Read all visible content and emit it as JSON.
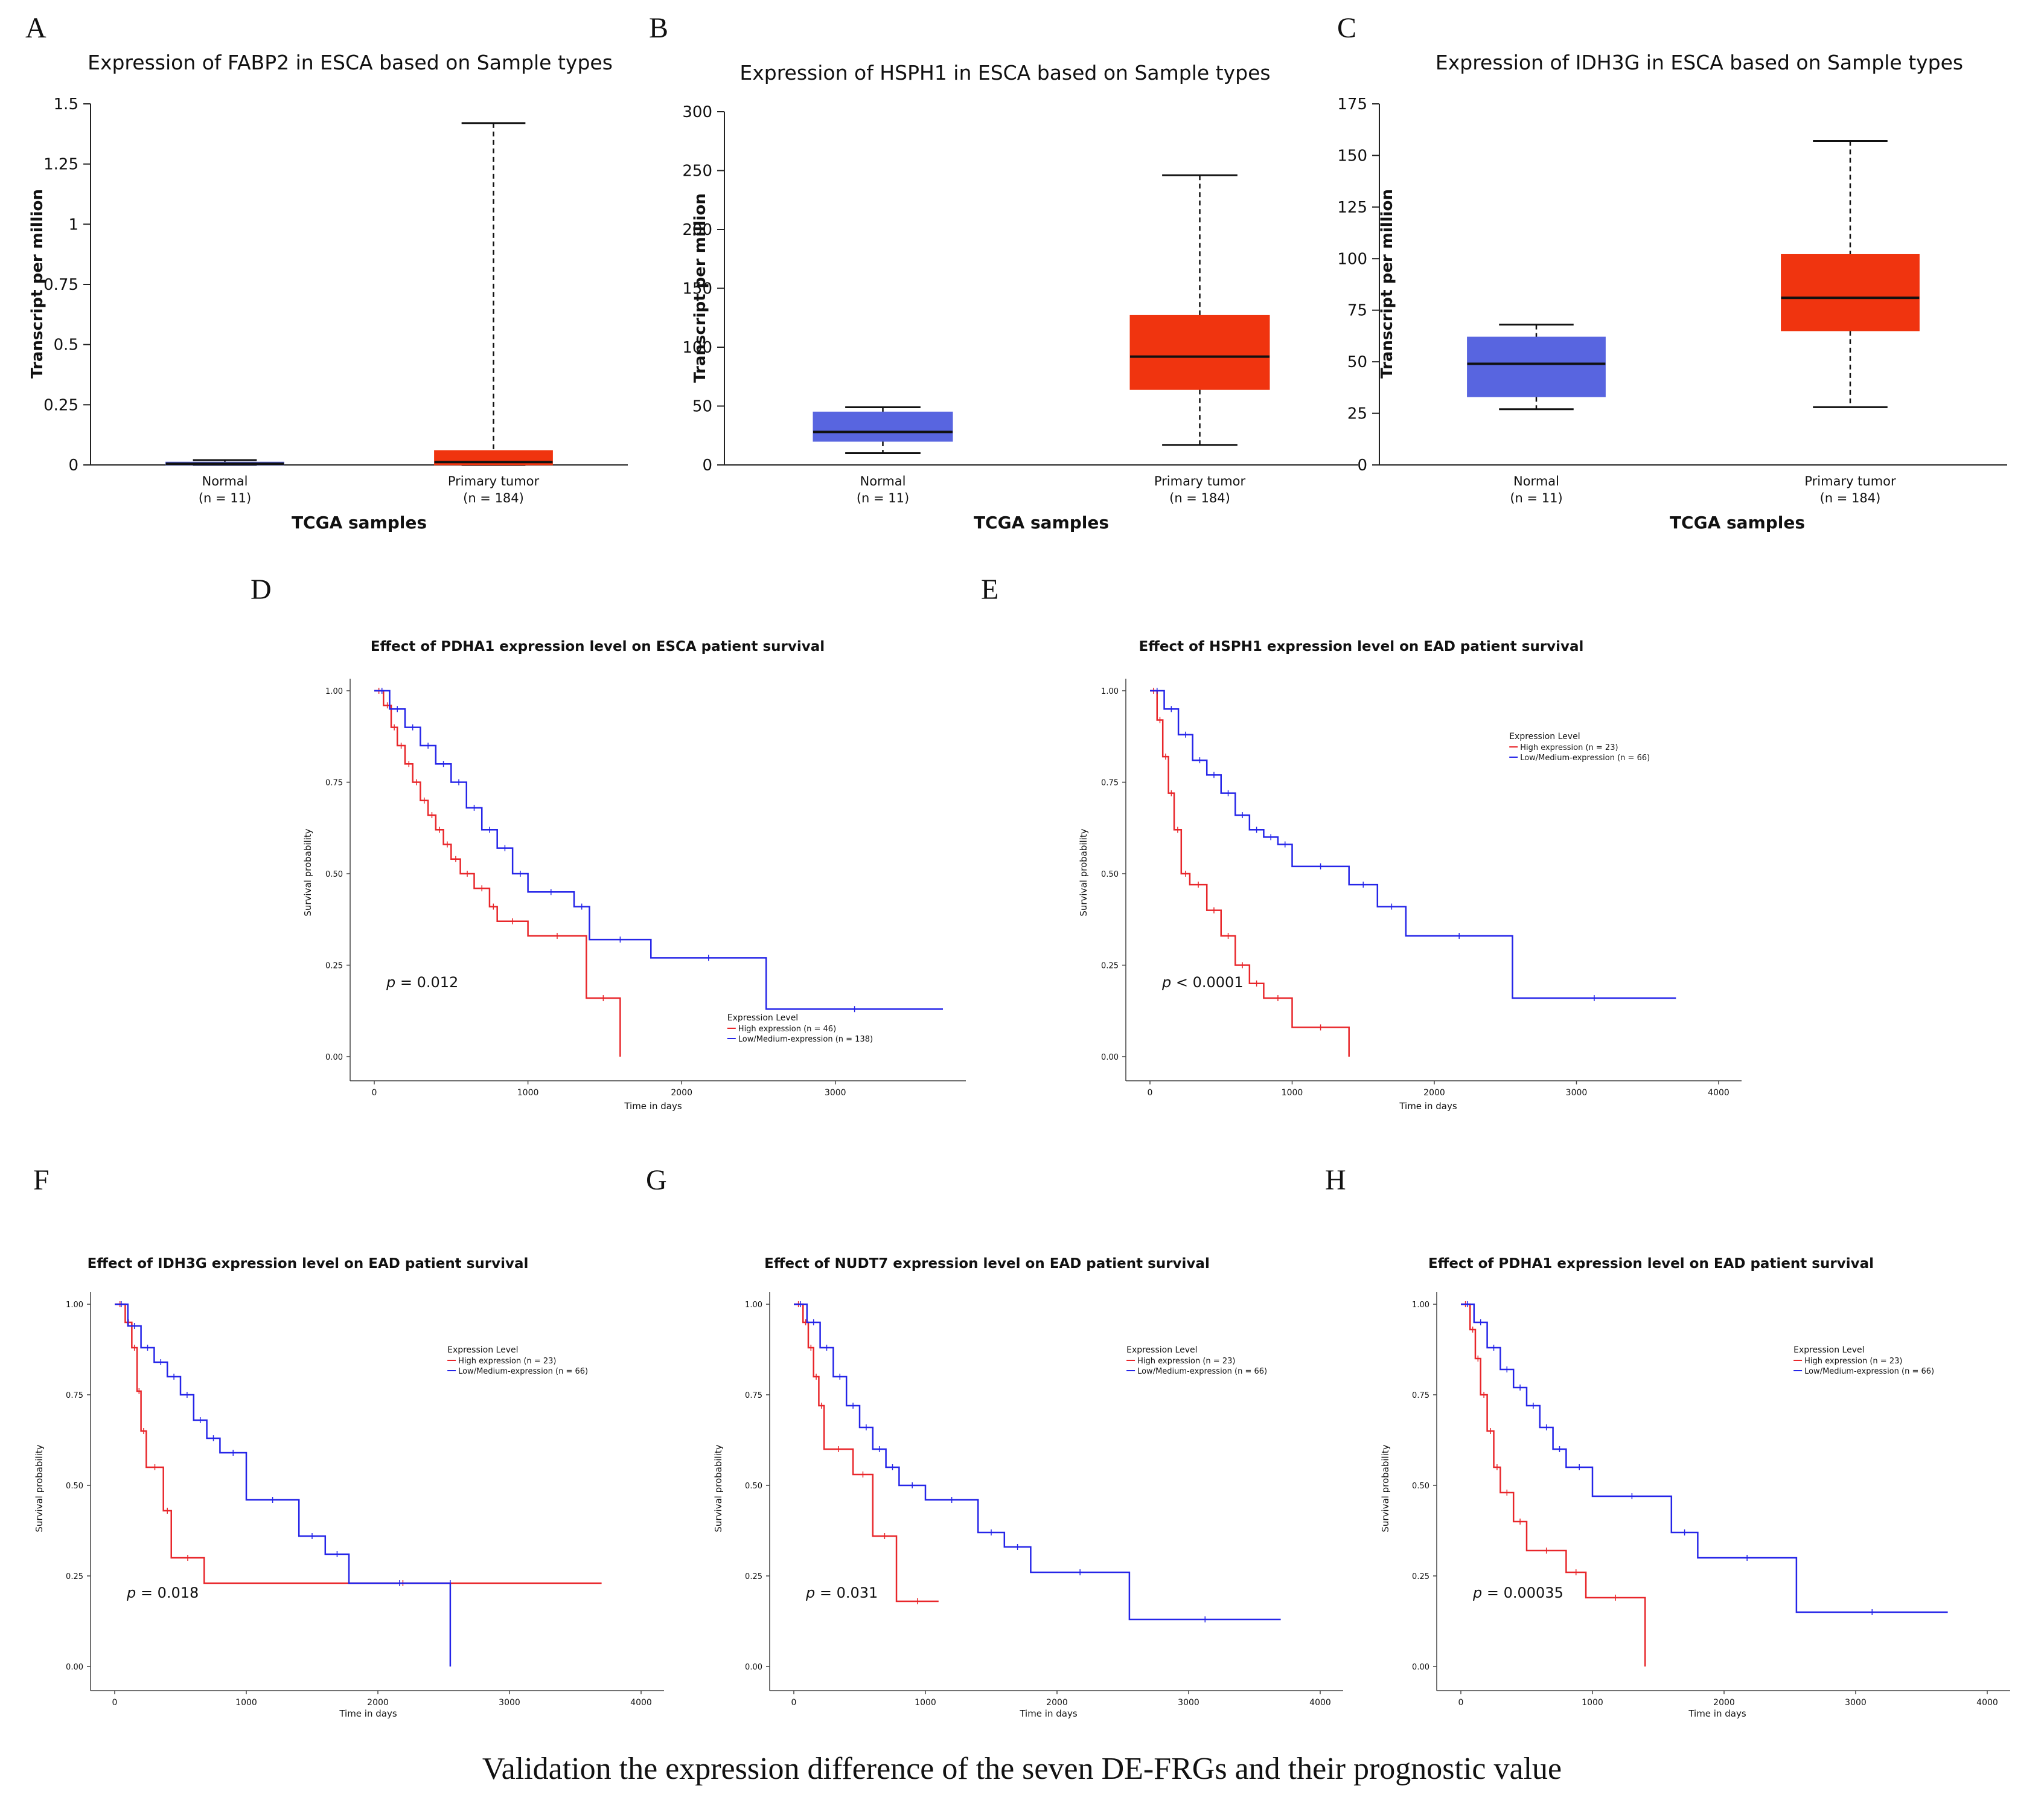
{
  "figure": {
    "caption": "Validation the expression difference of the seven DE-FRGs and their prognostic value"
  },
  "colors": {
    "normal_box": "#5865E0",
    "tumor_box": "#F0340F",
    "high_line": "#E8262A",
    "low_line": "#2525E8"
  },
  "chart_data": [
    {
      "panel": "A",
      "type": "box",
      "title": "Expression of FABP2 in ESCA based on Sample types",
      "ylabel": "Transcript per million",
      "xlabel": "TCGA samples",
      "ylim": [
        0,
        1.5
      ],
      "yticks": [
        0,
        0.25,
        0.5,
        0.75,
        1,
        1.25,
        1.5
      ],
      "ytick_labels": [
        "0",
        "0.25",
        "0.5",
        "0.75",
        "1",
        "1.25",
        "1.5"
      ],
      "groups": [
        {
          "name": "Normal",
          "n_label": "(n = 11)",
          "whisker_low": 0.0,
          "q1": 0.0,
          "median": 0.005,
          "q3": 0.012,
          "whisker_high": 0.02
        },
        {
          "name": "Primary tumor",
          "n_label": "(n = 184)",
          "whisker_low": 0.0,
          "q1": 0.0,
          "median": 0.012,
          "q3": 0.06,
          "whisker_high": 1.42
        }
      ]
    },
    {
      "panel": "B",
      "type": "box",
      "title": "Expression of HSPH1 in ESCA based on Sample types",
      "ylabel": "Transcript per million",
      "xlabel": "TCGA samples",
      "ylim": [
        0,
        300
      ],
      "yticks": [
        0,
        50,
        100,
        150,
        200,
        250,
        300
      ],
      "ytick_labels": [
        "0",
        "50",
        "100",
        "150",
        "200",
        "250",
        "300"
      ],
      "groups": [
        {
          "name": "Normal",
          "n_label": "(n = 11)",
          "whisker_low": 10,
          "q1": 20,
          "median": 28,
          "q3": 45,
          "whisker_high": 49
        },
        {
          "name": "Primary tumor",
          "n_label": "(n = 184)",
          "whisker_low": 17,
          "q1": 64,
          "median": 92,
          "q3": 127,
          "whisker_high": 246
        }
      ]
    },
    {
      "panel": "C",
      "type": "box",
      "title": "Expression of IDH3G in ESCA based on Sample types",
      "ylabel": "Transcript per million",
      "xlabel": "TCGA samples",
      "ylim": [
        0,
        175
      ],
      "yticks": [
        0,
        25,
        50,
        75,
        100,
        125,
        150,
        175
      ],
      "ytick_labels": [
        "0",
        "25",
        "50",
        "75",
        "100",
        "125",
        "150",
        "175"
      ],
      "groups": [
        {
          "name": "Normal",
          "n_label": "(n = 11)",
          "whisker_low": 27,
          "q1": 33,
          "median": 49,
          "q3": 62,
          "whisker_high": 68
        },
        {
          "name": "Primary tumor",
          "n_label": "(n = 184)",
          "whisker_low": 28,
          "q1": 65,
          "median": 81,
          "q3": 102,
          "whisker_high": 157
        }
      ]
    },
    {
      "panel": "D",
      "type": "line",
      "title": "Effect of PDHA1 expression level on ESCA patient survival",
      "ylabel": "Survival probability",
      "xlabel": "Time in days",
      "xlim": [
        0,
        3700
      ],
      "xticks": [
        0,
        1000,
        2000,
        3000
      ],
      "ylim": [
        0,
        1
      ],
      "yticks": [
        0,
        0.25,
        0.5,
        0.75,
        1
      ],
      "ytick_labels": [
        "0.00",
        "0.25",
        "0.50",
        "0.75",
        "1.00"
      ],
      "pvalue": "= 0.012",
      "legend_title": "Expression Level",
      "legend_items": [
        "High expression (n = 46)",
        "Low/Medium-expression (n = 138)"
      ],
      "legend_position": "bottom-right",
      "series": [
        {
          "name": "High expression",
          "x": [
            0,
            60,
            110,
            150,
            200,
            250,
            300,
            350,
            400,
            450,
            500,
            560,
            650,
            750,
            800,
            1000,
            1380,
            1600
          ],
          "y": [
            1.0,
            0.96,
            0.9,
            0.85,
            0.8,
            0.75,
            0.7,
            0.66,
            0.62,
            0.58,
            0.54,
            0.5,
            0.46,
            0.41,
            0.37,
            0.33,
            0.16,
            0.0
          ]
        },
        {
          "name": "Low/Medium-expression",
          "x": [
            0,
            100,
            200,
            300,
            400,
            500,
            600,
            700,
            800,
            900,
            1000,
            1300,
            1400,
            1800,
            2550,
            3700
          ],
          "y": [
            1.0,
            0.95,
            0.9,
            0.85,
            0.8,
            0.75,
            0.68,
            0.62,
            0.57,
            0.5,
            0.45,
            0.41,
            0.32,
            0.27,
            0.13,
            0.13
          ]
        }
      ]
    },
    {
      "panel": "E",
      "type": "line",
      "title": "Effect of HSPH1 expression level on EAD patient survival",
      "ylabel": "Survival probability",
      "xlabel": "Time in days",
      "xlim": [
        0,
        4000
      ],
      "xticks": [
        0,
        1000,
        2000,
        3000,
        4000
      ],
      "ylim": [
        0,
        1
      ],
      "yticks": [
        0,
        0.25,
        0.5,
        0.75,
        1
      ],
      "ytick_labels": [
        "0.00",
        "0.25",
        "0.50",
        "0.75",
        "1.00"
      ],
      "pvalue": "< 0.0001",
      "legend_title": "Expression Level",
      "legend_items": [
        "High expression (n = 23)",
        "Low/Medium-expression (n = 66)"
      ],
      "legend_position": "top-right",
      "series": [
        {
          "name": "High expression",
          "x": [
            0,
            50,
            90,
            130,
            170,
            220,
            280,
            400,
            500,
            600,
            700,
            800,
            1000,
            1400
          ],
          "y": [
            1.0,
            0.92,
            0.82,
            0.72,
            0.62,
            0.5,
            0.47,
            0.4,
            0.33,
            0.25,
            0.2,
            0.16,
            0.08,
            0.0
          ]
        },
        {
          "name": "Low/Medium-expression",
          "x": [
            0,
            100,
            200,
            300,
            400,
            500,
            600,
            700,
            800,
            900,
            1000,
            1400,
            1600,
            1800,
            2550,
            3700
          ],
          "y": [
            1.0,
            0.95,
            0.88,
            0.81,
            0.77,
            0.72,
            0.66,
            0.62,
            0.6,
            0.58,
            0.52,
            0.47,
            0.41,
            0.33,
            0.16,
            0.16
          ]
        }
      ]
    },
    {
      "panel": "F",
      "type": "line",
      "title": "Effect of IDH3G expression level on EAD patient survival",
      "ylabel": "Survival probability",
      "xlabel": "Time in days",
      "xlim": [
        0,
        4000
      ],
      "xticks": [
        0,
        1000,
        2000,
        3000,
        4000
      ],
      "ylim": [
        0,
        1
      ],
      "yticks": [
        0,
        0.25,
        0.5,
        0.75,
        1
      ],
      "ytick_labels": [
        "0.00",
        "0.25",
        "0.50",
        "0.75",
        "1.00"
      ],
      "pvalue": "= 0.018",
      "legend_title": "Expression Level",
      "legend_items": [
        "High expression (n = 23)",
        "Low/Medium-expression (n = 66)"
      ],
      "legend_position": "top-right",
      "series": [
        {
          "name": "High expression",
          "x": [
            0,
            80,
            130,
            170,
            200,
            240,
            370,
            430,
            680,
            3700
          ],
          "y": [
            1.0,
            0.95,
            0.88,
            0.76,
            0.65,
            0.55,
            0.43,
            0.3,
            0.23,
            0.23
          ]
        },
        {
          "name": "Low/Medium-expression",
          "x": [
            0,
            100,
            200,
            300,
            400,
            500,
            600,
            700,
            800,
            1000,
            1400,
            1600,
            1780,
            2550,
            2550
          ],
          "y": [
            1.0,
            0.94,
            0.88,
            0.84,
            0.8,
            0.75,
            0.68,
            0.63,
            0.59,
            0.46,
            0.36,
            0.31,
            0.23,
            0.23,
            0.0
          ]
        }
      ]
    },
    {
      "panel": "G",
      "type": "line",
      "title": "Effect of NUDT7 expression level on EAD patient survival",
      "ylabel": "Survival probability",
      "xlabel": "Time in days",
      "xlim": [
        0,
        4000
      ],
      "xticks": [
        0,
        1000,
        2000,
        3000,
        4000
      ],
      "ylim": [
        0,
        1
      ],
      "yticks": [
        0,
        0.25,
        0.5,
        0.75,
        1
      ],
      "ytick_labels": [
        "0.00",
        "0.25",
        "0.50",
        "0.75",
        "1.00"
      ],
      "pvalue": "= 0.031",
      "legend_title": "Expression Level",
      "legend_items": [
        "High expression (n = 23)",
        "Low/Medium-expression (n = 66)"
      ],
      "legend_position": "top-right",
      "series": [
        {
          "name": "High expression",
          "x": [
            0,
            70,
            110,
            150,
            190,
            230,
            450,
            600,
            780,
            1100
          ],
          "y": [
            1.0,
            0.95,
            0.88,
            0.8,
            0.72,
            0.6,
            0.53,
            0.36,
            0.18,
            0.18
          ]
        },
        {
          "name": "Low/Medium-expression",
          "x": [
            0,
            100,
            200,
            300,
            400,
            500,
            600,
            700,
            800,
            1000,
            1400,
            1600,
            1800,
            2550,
            3700
          ],
          "y": [
            1.0,
            0.95,
            0.88,
            0.8,
            0.72,
            0.66,
            0.6,
            0.55,
            0.5,
            0.46,
            0.37,
            0.33,
            0.26,
            0.13,
            0.13
          ]
        }
      ]
    },
    {
      "panel": "H",
      "type": "line",
      "title": "Effect of PDHA1 expression level on EAD patient survival",
      "ylabel": "Survival probability",
      "xlabel": "Time in days",
      "xlim": [
        0,
        4000
      ],
      "xticks": [
        0,
        1000,
        2000,
        3000,
        4000
      ],
      "ylim": [
        0,
        1
      ],
      "yticks": [
        0,
        0.25,
        0.5,
        0.75,
        1
      ],
      "ytick_labels": [
        "0.00",
        "0.25",
        "0.50",
        "0.75",
        "1.00"
      ],
      "pvalue": "= 0.00035",
      "legend_title": "Expression Level",
      "legend_items": [
        "High expression (n = 23)",
        "Low/Medium-expression (n = 66)"
      ],
      "legend_position": "top-right",
      "series": [
        {
          "name": "High expression",
          "x": [
            0,
            70,
            110,
            150,
            200,
            250,
            300,
            400,
            500,
            800,
            950,
            1400
          ],
          "y": [
            1.0,
            0.93,
            0.85,
            0.75,
            0.65,
            0.55,
            0.48,
            0.4,
            0.32,
            0.26,
            0.19,
            0.0
          ]
        },
        {
          "name": "Low/Medium-expression",
          "x": [
            0,
            100,
            200,
            300,
            400,
            500,
            600,
            700,
            800,
            1000,
            1600,
            1800,
            2550,
            3700
          ],
          "y": [
            1.0,
            0.95,
            0.88,
            0.82,
            0.77,
            0.72,
            0.66,
            0.6,
            0.55,
            0.47,
            0.37,
            0.3,
            0.15,
            0.15
          ]
        }
      ]
    }
  ]
}
